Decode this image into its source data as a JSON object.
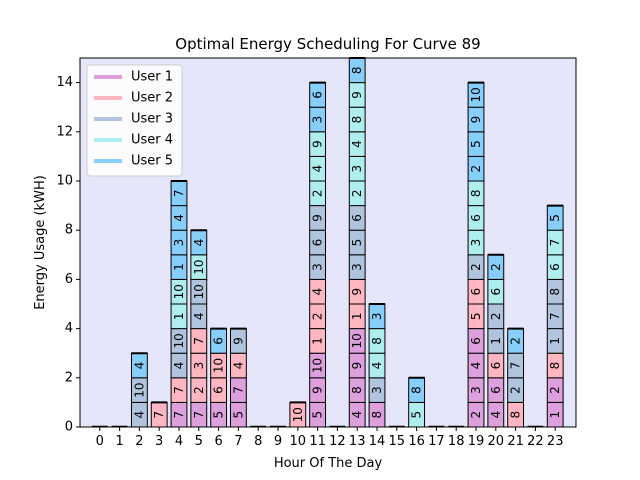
{
  "chart_data": {
    "type": "bar",
    "stacked": true,
    "title": "Optimal Energy Scheduling For Curve 89",
    "xlabel": "Hour Of The Day",
    "ylabel": "Energy Usage (kWH)",
    "ylim": [
      0,
      15
    ],
    "yticks": [
      0,
      2,
      4,
      6,
      8,
      10,
      12,
      14
    ],
    "categories": [
      "0",
      "1",
      "2",
      "3",
      "4",
      "5",
      "6",
      "7",
      "8",
      "9",
      "10",
      "11",
      "12",
      "13",
      "14",
      "15",
      "16",
      "17",
      "18",
      "19",
      "20",
      "21",
      "22",
      "23"
    ],
    "background": "#e6e6fa",
    "grid": false,
    "legend_position": "upper-left",
    "series": [
      {
        "name": "User 1",
        "color": "#dda0dd"
      },
      {
        "name": "User 2",
        "color": "#ffb6c1"
      },
      {
        "name": "User 3",
        "color": "#b0c4de"
      },
      {
        "name": "User 4",
        "color": "#afeeee"
      },
      {
        "name": "User 5",
        "color": "#87cefa"
      }
    ],
    "stacks": [
      [],
      [],
      [
        {
          "user": 3,
          "label": "4"
        },
        {
          "user": 3,
          "label": "10"
        },
        {
          "user": 5,
          "label": "4"
        }
      ],
      [
        {
          "user": 2,
          "label": "7"
        }
      ],
      [
        {
          "user": 1,
          "label": "7"
        },
        {
          "user": 2,
          "label": "7"
        },
        {
          "user": 3,
          "label": "4"
        },
        {
          "user": 3,
          "label": "10"
        },
        {
          "user": 4,
          "label": "1"
        },
        {
          "user": 4,
          "label": "10"
        },
        {
          "user": 5,
          "label": "1"
        },
        {
          "user": 5,
          "label": "3"
        },
        {
          "user": 5,
          "label": "4"
        },
        {
          "user": 5,
          "label": "7"
        }
      ],
      [
        {
          "user": 1,
          "label": "7"
        },
        {
          "user": 2,
          "label": "2"
        },
        {
          "user": 2,
          "label": "3"
        },
        {
          "user": 2,
          "label": "7"
        },
        {
          "user": 3,
          "label": "4"
        },
        {
          "user": 3,
          "label": "10"
        },
        {
          "user": 4,
          "label": "10"
        },
        {
          "user": 5,
          "label": "4"
        }
      ],
      [
        {
          "user": 1,
          "label": "5"
        },
        {
          "user": 2,
          "label": "6"
        },
        {
          "user": 2,
          "label": "10"
        },
        {
          "user": 5,
          "label": "6"
        }
      ],
      [
        {
          "user": 1,
          "label": "5"
        },
        {
          "user": 1,
          "label": "7"
        },
        {
          "user": 2,
          "label": "4"
        },
        {
          "user": 3,
          "label": "9"
        }
      ],
      [],
      [],
      [
        {
          "user": 2,
          "label": "10"
        }
      ],
      [
        {
          "user": 1,
          "label": "5"
        },
        {
          "user": 1,
          "label": "9"
        },
        {
          "user": 1,
          "label": "10"
        },
        {
          "user": 2,
          "label": "1"
        },
        {
          "user": 2,
          "label": "2"
        },
        {
          "user": 2,
          "label": "4"
        },
        {
          "user": 3,
          "label": "3"
        },
        {
          "user": 3,
          "label": "6"
        },
        {
          "user": 3,
          "label": "9"
        },
        {
          "user": 4,
          "label": "2"
        },
        {
          "user": 4,
          "label": "4"
        },
        {
          "user": 4,
          "label": "9"
        },
        {
          "user": 5,
          "label": "3"
        },
        {
          "user": 5,
          "label": "6"
        }
      ],
      [],
      [
        {
          "user": 1,
          "label": "4"
        },
        {
          "user": 1,
          "label": "8"
        },
        {
          "user": 1,
          "label": "9"
        },
        {
          "user": 1,
          "label": "10"
        },
        {
          "user": 2,
          "label": "1"
        },
        {
          "user": 2,
          "label": "9"
        },
        {
          "user": 3,
          "label": "3"
        },
        {
          "user": 3,
          "label": "5"
        },
        {
          "user": 3,
          "label": "6"
        },
        {
          "user": 4,
          "label": "2"
        },
        {
          "user": 4,
          "label": "3"
        },
        {
          "user": 4,
          "label": "4"
        },
        {
          "user": 4,
          "label": "8"
        },
        {
          "user": 4,
          "label": "9"
        },
        {
          "user": 5,
          "label": "8"
        }
      ],
      [
        {
          "user": 1,
          "label": "8"
        },
        {
          "user": 3,
          "label": "3"
        },
        {
          "user": 4,
          "label": "4"
        },
        {
          "user": 4,
          "label": "8"
        },
        {
          "user": 5,
          "label": "3"
        }
      ],
      [],
      [
        {
          "user": 4,
          "label": "5"
        },
        {
          "user": 5,
          "label": "8"
        }
      ],
      [],
      [],
      [
        {
          "user": 1,
          "label": "2"
        },
        {
          "user": 1,
          "label": "3"
        },
        {
          "user": 1,
          "label": "4"
        },
        {
          "user": 1,
          "label": "6"
        },
        {
          "user": 2,
          "label": "5"
        },
        {
          "user": 2,
          "label": "6"
        },
        {
          "user": 3,
          "label": "2"
        },
        {
          "user": 4,
          "label": "3"
        },
        {
          "user": 4,
          "label": "6"
        },
        {
          "user": 4,
          "label": "8"
        },
        {
          "user": 5,
          "label": "2"
        },
        {
          "user": 5,
          "label": "5"
        },
        {
          "user": 5,
          "label": "9"
        },
        {
          "user": 5,
          "label": "10"
        }
      ],
      [
        {
          "user": 1,
          "label": "4"
        },
        {
          "user": 1,
          "label": "6"
        },
        {
          "user": 2,
          "label": "6"
        },
        {
          "user": 3,
          "label": "1"
        },
        {
          "user": 3,
          "label": "2"
        },
        {
          "user": 4,
          "label": "6"
        },
        {
          "user": 5,
          "label": "2"
        }
      ],
      [
        {
          "user": 2,
          "label": "8"
        },
        {
          "user": 3,
          "label": "2"
        },
        {
          "user": 3,
          "label": "7"
        },
        {
          "user": 5,
          "label": "2"
        }
      ],
      [],
      [
        {
          "user": 1,
          "label": "1"
        },
        {
          "user": 1,
          "label": "2"
        },
        {
          "user": 2,
          "label": "8"
        },
        {
          "user": 3,
          "label": "1"
        },
        {
          "user": 3,
          "label": "7"
        },
        {
          "user": 3,
          "label": "8"
        },
        {
          "user": 4,
          "label": "6"
        },
        {
          "user": 4,
          "label": "7"
        },
        {
          "user": 5,
          "label": "5"
        }
      ]
    ]
  }
}
